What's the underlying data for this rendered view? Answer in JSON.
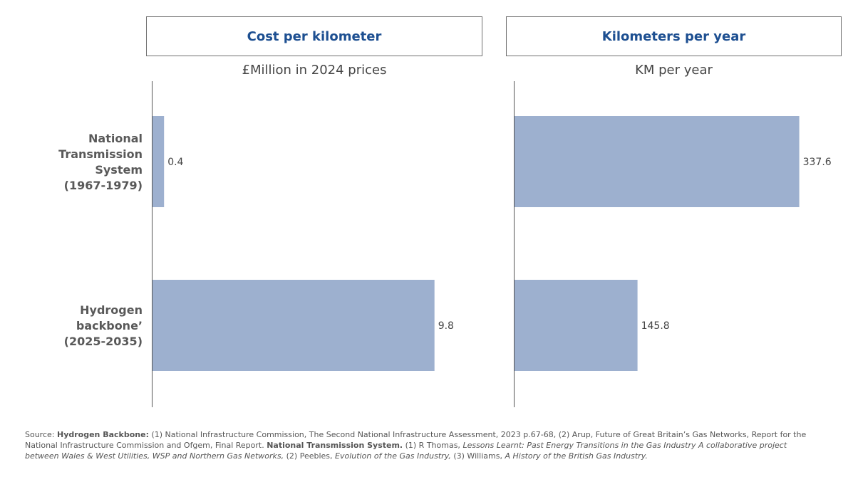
{
  "chart_data": [
    {
      "type": "bar",
      "orientation": "horizontal",
      "title": "Cost per kilometer",
      "subtitle": "£Million in 2024 prices",
      "categories": [
        "National Transmission System (1967-1979)",
        "Hydrogen backbone’ (2025-2035)"
      ],
      "values": [
        0.4,
        9.8
      ],
      "value_labels": [
        "0.4",
        "9.8"
      ],
      "color": "#9db0cf",
      "xlim": [
        0,
        10.6
      ],
      "grid": false
    },
    {
      "type": "bar",
      "orientation": "horizontal",
      "title": "Kilometers per year",
      "subtitle": "KM per year",
      "categories": [
        "National Transmission System (1967-1979)",
        "Hydrogen backbone’ (2025-2035)"
      ],
      "values": [
        337.6,
        145.8
      ],
      "value_labels": [
        "337.6",
        "145.8"
      ],
      "color": "#9db0cf",
      "xlim": [
        0,
        370
      ],
      "grid": false
    }
  ],
  "category_labels": [
    "National \nTransmission \nSystem\n(1967-1979)",
    "Hydrogen \nbackbone’\n(2025-2035)"
  ],
  "source": {
    "prefix": "Source: ",
    "h_label": "Hydrogen Backbone:",
    "h_text": " (1) National Infrastructure Commission, The Second National Infrastructure Assessment, 2023 p.67-68, (2) Arup, Future of Great Britain’s Gas Networks, Report for the National Infrastructure Commission and Ofgem, Final Report. ",
    "n_label": "National Transmission System.",
    "n_text1": " (1) R Thomas, ",
    "n_italic1": "Lessons Learnt: Past Energy Transitions in the Gas Industry A collaborative project between Wales & West Utilities, WSP and Northern Gas Networks,",
    "n_text2": " (2) Peebles, ",
    "n_italic2": "Evolution of the Gas Industry,",
    "n_text3": " (3) Williams, ",
    "n_italic3": "A History  of the British Gas Industry."
  }
}
